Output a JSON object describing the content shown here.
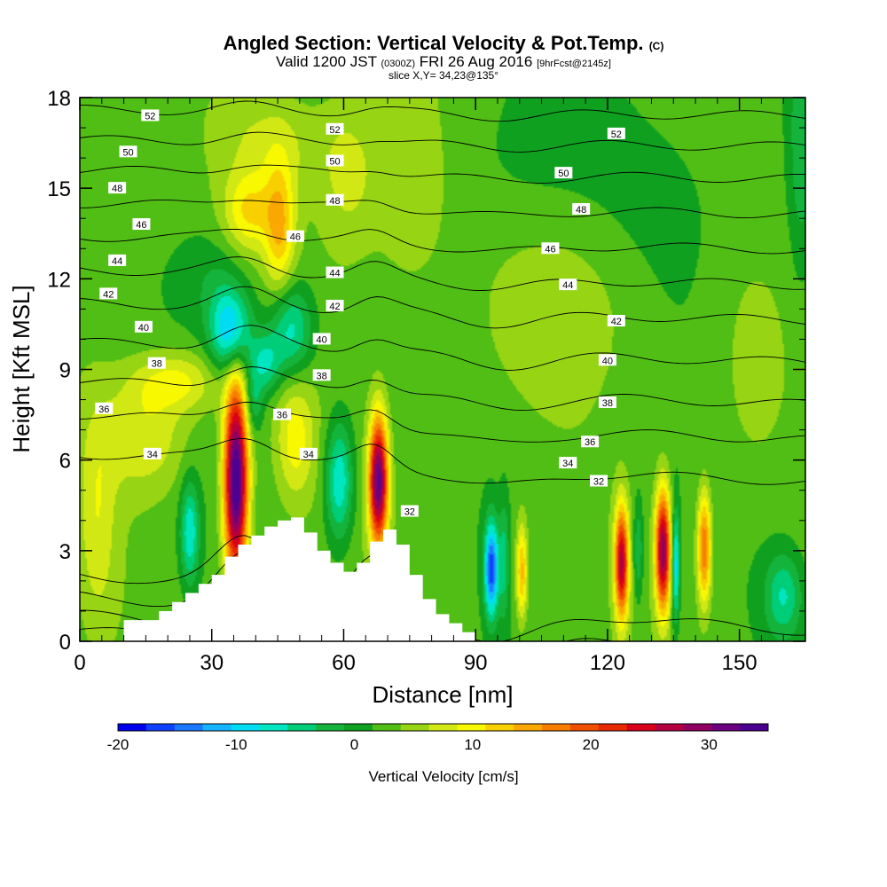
{
  "title": {
    "main": "Angled Section: Vertical Velocity & Pot.Temp.",
    "main_unit": "(C)",
    "sub_prefix": "Valid 1200 JST",
    "sub_utc": "(0300Z)",
    "sub_date": "FRI 26 Aug 2016",
    "sub_fcst": "[9hrFcst@2145z]",
    "slice": "slice X,Y= 34,23@135°"
  },
  "chart_data": {
    "type": "heatmap",
    "xlabel": "Distance [nm]",
    "ylabel": "Height [Kft MSL]",
    "xlim": [
      0,
      165
    ],
    "ylim": [
      0,
      18
    ],
    "x_ticks": [
      0,
      30,
      60,
      90,
      120,
      150
    ],
    "y_ticks": [
      0,
      3,
      6,
      9,
      12,
      15,
      18
    ],
    "colorbar": {
      "label": "Vertical Velocity [cm/s]",
      "range": [
        -20,
        35
      ],
      "ticks": [
        -20,
        -10,
        0,
        10,
        20,
        30
      ],
      "colors": [
        "#0000ee",
        "#1040ff",
        "#1a78ff",
        "#14b4ff",
        "#00dcf4",
        "#00e6c0",
        "#00cd78",
        "#14b43c",
        "#10a020",
        "#50be14",
        "#96d414",
        "#d2e814",
        "#f8f800",
        "#f8d000",
        "#f8a800",
        "#f87e00",
        "#f05000",
        "#e82800",
        "#d8001a",
        "#b40040",
        "#900060",
        "#6c0080",
        "#4c0090"
      ]
    },
    "terrain": {
      "x": [
        10,
        15,
        18,
        21,
        24,
        27,
        30,
        33,
        36,
        39,
        42,
        45,
        48,
        51,
        54,
        57,
        60,
        63,
        66,
        69,
        72,
        75,
        78,
        81,
        84,
        87,
        90
      ],
      "height": [
        0.7,
        0.7,
        1.0,
        1.3,
        1.6,
        1.9,
        2.2,
        2.8,
        3.2,
        3.5,
        3.8,
        4.0,
        4.1,
        3.6,
        3.0,
        2.6,
        2.3,
        2.6,
        3.3,
        3.7,
        3.2,
        2.2,
        1.4,
        0.9,
        0.6,
        0.3,
        0.0
      ]
    },
    "cells": [
      {
        "x": 35.5,
        "y": 5.3,
        "sx": 1.9,
        "sy": 2.3,
        "w": 34
      },
      {
        "x": 67.9,
        "y": 5.3,
        "sx": 1.5,
        "sy": 1.5,
        "w": 30
      },
      {
        "x": 123.2,
        "y": 2.6,
        "sx": 1.1,
        "sy": 1.3,
        "w": 24
      },
      {
        "x": 132.6,
        "y": 3.0,
        "sx": 1.2,
        "sy": 1.4,
        "w": 27
      },
      {
        "x": 142.0,
        "y": 3.1,
        "sx": 1.1,
        "sy": 1.3,
        "w": 16
      },
      {
        "x": 100.5,
        "y": 2.3,
        "sx": 0.9,
        "sy": 1.1,
        "w": 12
      },
      {
        "x": 93.6,
        "y": 2.4,
        "sx": 1.1,
        "sy": 1.1,
        "w": -19
      },
      {
        "x": 135.5,
        "y": 2.5,
        "sx": 0.6,
        "sy": 1.3,
        "w": -13
      },
      {
        "x": 96.5,
        "y": 2.7,
        "sx": 0.8,
        "sy": 1.4,
        "w": -6
      },
      {
        "x": 127.0,
        "y": 3.0,
        "sx": 0.8,
        "sy": 1.2,
        "w": -6
      },
      {
        "x": 34.4,
        "y": 10.3,
        "sx": 3.2,
        "sy": 1.0,
        "w": -14
      },
      {
        "x": 48.0,
        "y": 10.3,
        "sx": 3.5,
        "sy": 1.1,
        "w": -10
      },
      {
        "x": 42.0,
        "y": 9.2,
        "sx": 2.5,
        "sy": 0.7,
        "w": -8
      },
      {
        "x": 59.0,
        "y": 5.3,
        "sx": 2.2,
        "sy": 1.4,
        "w": -11
      },
      {
        "x": 25.0,
        "y": 3.6,
        "sx": 1.5,
        "sy": 1.2,
        "w": -10
      },
      {
        "x": 39.5,
        "y": 7.9,
        "sx": 1.5,
        "sy": 0.7,
        "w": -6
      },
      {
        "x": 45.5,
        "y": 13.7,
        "sx": 2.4,
        "sy": 1.5,
        "w": 10
      },
      {
        "x": 38.5,
        "y": 14.2,
        "sx": 4.0,
        "sy": 0.9,
        "w": 8
      },
      {
        "x": 44.0,
        "y": 16.5,
        "sx": 8.0,
        "sy": 1.2,
        "w": 4
      },
      {
        "x": 22.0,
        "y": 8.6,
        "sx": 7.0,
        "sy": 0.7,
        "w": 7
      },
      {
        "x": 15.0,
        "y": 6.8,
        "sx": 7.0,
        "sy": 1.3,
        "w": 6
      },
      {
        "x": 4.0,
        "y": 4.0,
        "sx": 3.0,
        "sy": 2.5,
        "w": 5
      },
      {
        "x": 49.0,
        "y": 6.7,
        "sx": 3.0,
        "sy": 1.4,
        "w": 7
      },
      {
        "x": 61.0,
        "y": 15.5,
        "sx": 5.0,
        "sy": 2.0,
        "w": 5
      },
      {
        "x": 75.0,
        "y": 15.0,
        "sx": 6.0,
        "sy": 2.5,
        "w": 4
      },
      {
        "x": 98.0,
        "y": 16.0,
        "sx": 12.0,
        "sy": 2.5,
        "w": -2
      },
      {
        "x": 140.0,
        "y": 15.0,
        "sx": 14.0,
        "sy": 3.0,
        "w": -1.5
      },
      {
        "x": 110.0,
        "y": 11.0,
        "sx": 12.0,
        "sy": 2.0,
        "w": 3
      },
      {
        "x": 160.0,
        "y": 1.5,
        "sx": 3.0,
        "sy": 1.0,
        "w": -8
      },
      {
        "x": 164.0,
        "y": 16.5,
        "sx": 2.0,
        "sy": 3.0,
        "w": -5
      },
      {
        "x": 153.0,
        "y": 9.0,
        "sx": 4.0,
        "sy": 2.0,
        "w": 3
      },
      {
        "x": 30.0,
        "y": 12.0,
        "sx": 5.0,
        "sy": 1.2,
        "w": -3
      }
    ],
    "isentropes": {
      "heights_at_x0": [
        0.4,
        0.9,
        1.5,
        2.2,
        6.2,
        7.5,
        8.6,
        9.9,
        11.2,
        12.3,
        13.4,
        14.5,
        15.6,
        16.6,
        17.6
      ],
      "labels": [
        {
          "text": "52",
          "x": 16,
          "y": 17.4
        },
        {
          "text": "52",
          "x": 58,
          "y": 16.95
        },
        {
          "text": "52",
          "x": 122,
          "y": 16.8
        },
        {
          "text": "50",
          "x": 11,
          "y": 16.2
        },
        {
          "text": "50",
          "x": 58,
          "y": 15.9
        },
        {
          "text": "50",
          "x": 110,
          "y": 15.5
        },
        {
          "text": "48",
          "x": 8.5,
          "y": 15.0
        },
        {
          "text": "48",
          "x": 58,
          "y": 14.6
        },
        {
          "text": "48",
          "x": 114,
          "y": 14.3
        },
        {
          "text": "46",
          "x": 14,
          "y": 13.8
        },
        {
          "text": "46",
          "x": 49,
          "y": 13.4
        },
        {
          "text": "46",
          "x": 107,
          "y": 13.0
        },
        {
          "text": "44",
          "x": 8.5,
          "y": 12.6
        },
        {
          "text": "44",
          "x": 58,
          "y": 12.2
        },
        {
          "text": "44",
          "x": 111,
          "y": 11.8
        },
        {
          "text": "42",
          "x": 6.5,
          "y": 11.5
        },
        {
          "text": "42",
          "x": 58,
          "y": 11.1
        },
        {
          "text": "42",
          "x": 122,
          "y": 10.6
        },
        {
          "text": "40",
          "x": 14.5,
          "y": 10.4
        },
        {
          "text": "40",
          "x": 55,
          "y": 10.0
        },
        {
          "text": "40",
          "x": 120,
          "y": 9.3
        },
        {
          "text": "38",
          "x": 17.5,
          "y": 9.2
        },
        {
          "text": "38",
          "x": 55,
          "y": 8.8
        },
        {
          "text": "38",
          "x": 120,
          "y": 7.9
        },
        {
          "text": "36",
          "x": 5.5,
          "y": 7.7
        },
        {
          "text": "36",
          "x": 46,
          "y": 7.5
        },
        {
          "text": "36",
          "x": 116,
          "y": 6.6
        },
        {
          "text": "34",
          "x": 16.5,
          "y": 6.2
        },
        {
          "text": "34",
          "x": 52,
          "y": 6.2
        },
        {
          "text": "34",
          "x": 111,
          "y": 5.9
        },
        {
          "text": "32",
          "x": 75,
          "y": 4.3
        },
        {
          "text": "32",
          "x": 118,
          "y": 5.3
        }
      ]
    },
    "legend": "bottom"
  }
}
